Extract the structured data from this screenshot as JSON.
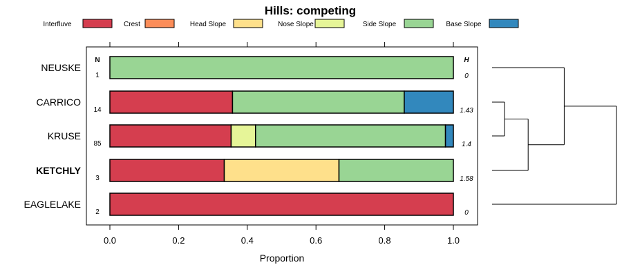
{
  "chart_data": {
    "type": "bar",
    "orientation": "horizontal",
    "stacked": true,
    "title": "Hills: competing",
    "xlabel": "Proportion",
    "xlim": [
      0,
      1
    ],
    "xticks": [
      "0.0",
      "0.2",
      "0.4",
      "0.6",
      "0.8",
      "1.0"
    ],
    "xtick_values": [
      0,
      0.2,
      0.4,
      0.6,
      0.8,
      1.0
    ],
    "n_header": "N",
    "h_header": "H",
    "legend_position": "top",
    "legend": [
      {
        "name": "Interfluve",
        "color": "#d53e4f"
      },
      {
        "name": "Crest",
        "color": "#fc8d59"
      },
      {
        "name": "Head Slope",
        "color": "#fee08b"
      },
      {
        "name": "Nose Slope",
        "color": "#e6f598"
      },
      {
        "name": "Side Slope",
        "color": "#99d594"
      },
      {
        "name": "Base Slope",
        "color": "#3288bd"
      }
    ],
    "categories": [
      "NEUSKE",
      "CARRICO",
      "KRUSE",
      "KETCHLY",
      "EAGLELAKE"
    ],
    "highlighted": "KETCHLY",
    "n": [
      "1",
      "14",
      "85",
      "3",
      "2"
    ],
    "h": [
      "0",
      "1.43",
      "1.4",
      "1.58",
      "0"
    ],
    "series": [
      {
        "name": "Interfluve",
        "values": [
          0,
          0.357,
          0.353,
          0.333,
          1.0
        ]
      },
      {
        "name": "Crest",
        "values": [
          0,
          0,
          0,
          0,
          0
        ]
      },
      {
        "name": "Head Slope",
        "values": [
          0,
          0,
          0,
          0.334,
          0
        ]
      },
      {
        "name": "Nose Slope",
        "values": [
          0,
          0,
          0.071,
          0,
          0
        ]
      },
      {
        "name": "Side Slope",
        "values": [
          1.0,
          0.5,
          0.553,
          0.333,
          0
        ]
      },
      {
        "name": "Base Slope",
        "values": [
          0,
          0.143,
          0.023,
          0,
          0
        ]
      }
    ],
    "dendrogram": {
      "merges": [
        {
          "a": "CARRICO",
          "b": "KRUSE",
          "height": 0.1
        },
        {
          "a": "CARRICO+KRUSE",
          "b": "KETCHLY",
          "height": 0.29
        },
        {
          "a": "NEUSKE",
          "b": "CARRICO+KRUSE+KETCHLY",
          "height": 0.58
        },
        {
          "a": "all",
          "b": "EAGLELAKE",
          "height": 1.0
        }
      ]
    }
  }
}
